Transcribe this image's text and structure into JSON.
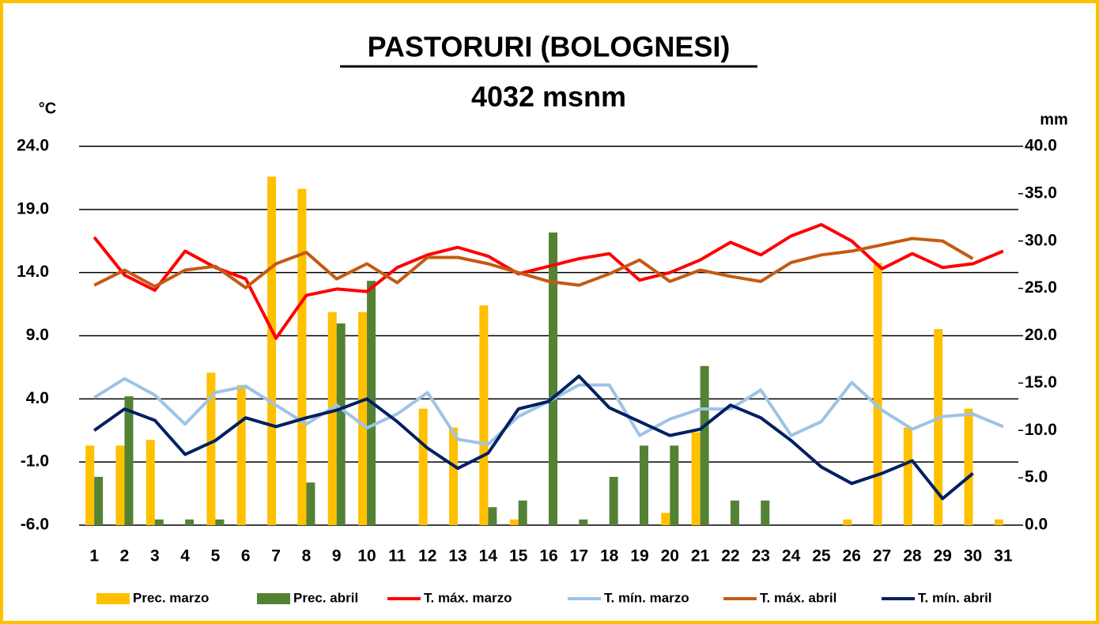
{
  "chart_data": {
    "type": "combo",
    "title": "PASTORURI (BOLOGNESI)",
    "subtitle": "4032 msnm",
    "y_label": "°C",
    "y2_label": "mm",
    "categories": [
      "1",
      "2",
      "3",
      "4",
      "5",
      "6",
      "7",
      "8",
      "9",
      "10",
      "11",
      "12",
      "13",
      "14",
      "15",
      "16",
      "17",
      "18",
      "19",
      "20",
      "21",
      "22",
      "23",
      "24",
      "25",
      "26",
      "27",
      "28",
      "29",
      "30",
      "31"
    ],
    "ylim": [
      -6,
      24
    ],
    "yticks": [
      {
        "value": -6,
        "label": "-6.0"
      },
      {
        "value": -1,
        "label": "-1.0"
      },
      {
        "value": 4,
        "label": "4.0"
      },
      {
        "value": 9,
        "label": "9.0"
      },
      {
        "value": 14,
        "label": "14.0"
      },
      {
        "value": 19,
        "label": "19.0"
      },
      {
        "value": 24,
        "label": "24.0"
      }
    ],
    "y2lim": [
      0,
      40
    ],
    "y2ticks": [
      {
        "value": 0,
        "label": "0.0"
      },
      {
        "value": 5,
        "label": "5.0"
      },
      {
        "value": 10,
        "label": "10.0"
      },
      {
        "value": 15,
        "label": "15.0"
      },
      {
        "value": 20,
        "label": "20.0"
      },
      {
        "value": 25,
        "label": "25.0"
      },
      {
        "value": 30,
        "label": "30.0"
      },
      {
        "value": 35,
        "label": "35.0"
      },
      {
        "value": 40,
        "label": "40.0"
      }
    ],
    "grid": true,
    "legend": "bottom",
    "series": [
      {
        "name": "Prec. marzo",
        "type": "bar",
        "axis": "y2",
        "color": "#ffc000",
        "values": [
          8.4,
          8.4,
          9.0,
          0,
          16.1,
          14.8,
          36.8,
          35.5,
          22.5,
          22.5,
          0,
          12.3,
          10.3,
          23.2,
          0.6,
          0,
          0,
          0,
          0,
          1.3,
          9.8,
          0,
          0,
          0,
          0,
          0.6,
          27.7,
          10.3,
          20.7,
          12.3,
          0.6
        ]
      },
      {
        "name": "Prec. abril",
        "type": "bar",
        "axis": "y2",
        "color": "#548235",
        "values": [
          5.1,
          13.6,
          0.6,
          0.6,
          0.6,
          0,
          0,
          4.5,
          21.3,
          25.8,
          0,
          0,
          0,
          1.9,
          2.6,
          30.9,
          0.6,
          5.1,
          8.4,
          8.4,
          16.8,
          2.6,
          2.6,
          0,
          0,
          0,
          0,
          0,
          0,
          0,
          null
        ]
      },
      {
        "name": "T. máx. marzo",
        "type": "line",
        "color": "#ff0000",
        "values": [
          16.8,
          13.8,
          12.6,
          15.7,
          14.4,
          13.5,
          8.8,
          12.2,
          12.7,
          12.5,
          14.4,
          15.4,
          16.0,
          15.3,
          13.9,
          14.5,
          15.1,
          15.5,
          13.4,
          14.0,
          15.0,
          16.4,
          15.4,
          16.9,
          17.8,
          16.5,
          14.3,
          15.5,
          14.4,
          14.7,
          15.7
        ]
      },
      {
        "name": "T. mín. marzo",
        "type": "line",
        "color": "#9dc3e6",
        "values": [
          4.1,
          5.6,
          4.3,
          2.0,
          4.5,
          5.0,
          3.5,
          2.0,
          3.5,
          1.7,
          2.8,
          4.5,
          0.8,
          0.4,
          2.6,
          3.8,
          5.1,
          5.1,
          1.1,
          2.4,
          3.2,
          3.2,
          4.7,
          1.1,
          2.2,
          5.3,
          3.1,
          1.6,
          2.6,
          2.8,
          1.8
        ]
      },
      {
        "name": "T. máx. abril",
        "type": "line",
        "color": "#c55a11",
        "values": [
          13.0,
          14.2,
          12.9,
          14.2,
          14.5,
          12.8,
          14.7,
          15.6,
          13.5,
          14.7,
          13.2,
          15.2,
          15.2,
          14.7,
          14.0,
          13.3,
          13.0,
          13.9,
          15.0,
          13.3,
          14.2,
          13.7,
          13.3,
          14.8,
          15.4,
          15.7,
          16.2,
          16.7,
          16.5,
          15.1,
          null
        ]
      },
      {
        "name": "T. mín. abril",
        "type": "line",
        "color": "#002060",
        "values": [
          1.5,
          3.2,
          2.3,
          -0.4,
          0.7,
          2.5,
          1.8,
          2.5,
          3.1,
          4.0,
          2.2,
          0.1,
          -1.5,
          -0.3,
          3.2,
          3.8,
          5.8,
          3.3,
          2.2,
          1.1,
          1.6,
          3.5,
          2.5,
          0.7,
          -1.4,
          -2.7,
          -1.9,
          -0.9,
          -3.9,
          -1.9,
          null
        ]
      }
    ]
  }
}
